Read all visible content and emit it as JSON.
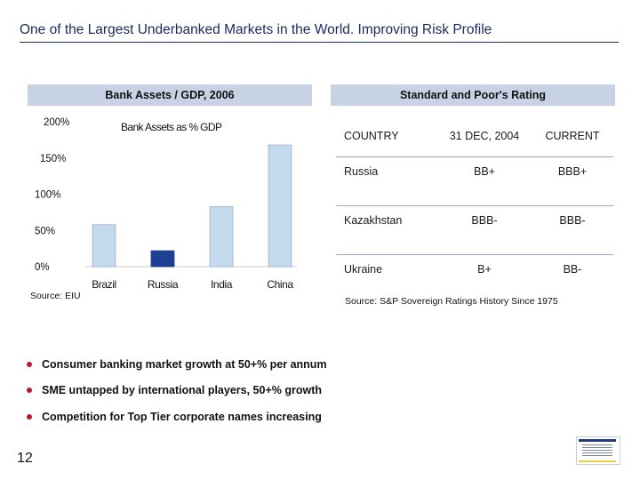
{
  "header": {
    "title": "One of the Largest Underbanked Markets in the World. Improving Risk Profile"
  },
  "left_panel": {
    "heading": "Bank Assets / GDP, 2006",
    "source": "Source: EIU"
  },
  "chart_data": {
    "type": "bar",
    "title": "Bank Assets as % GDP",
    "categories": [
      "Brazil",
      "Russia",
      "India",
      "China"
    ],
    "values": [
      58,
      22,
      83,
      168
    ],
    "highlight": "Russia",
    "ylim": [
      0,
      200
    ],
    "yticks": [
      "0%",
      "50%",
      "100%",
      "150%",
      "200%"
    ],
    "xlabel": "",
    "ylabel": "",
    "grid": false,
    "colors": {
      "bar": "#c3d9ec",
      "bar_stroke": "#9bb5cc",
      "highlight": "#1f3f92"
    }
  },
  "right_panel": {
    "heading": "Standard and Poor's Rating",
    "source": "Source: S&P Sovereign Ratings History Since 1975",
    "table": {
      "headers": [
        "COUNTRY",
        "31 DEC, 2004",
        "CURRENT"
      ],
      "rows": [
        [
          "Russia",
          "BB+",
          "BBB+"
        ],
        [
          "Kazakhstan",
          "BBB-",
          "BBB-"
        ],
        [
          "Ukraine",
          "B+",
          "BB-"
        ]
      ]
    }
  },
  "bullets": [
    "Consumer banking market growth at 50+% per annum",
    "SME untapped by international players, 50+% growth",
    "Competition for Top Tier corporate names increasing"
  ],
  "footer": {
    "page_number": "12"
  },
  "colors": {
    "accent": "#1c2a5c",
    "band": "#c7d3e5",
    "bullet": "#b51a2e"
  }
}
